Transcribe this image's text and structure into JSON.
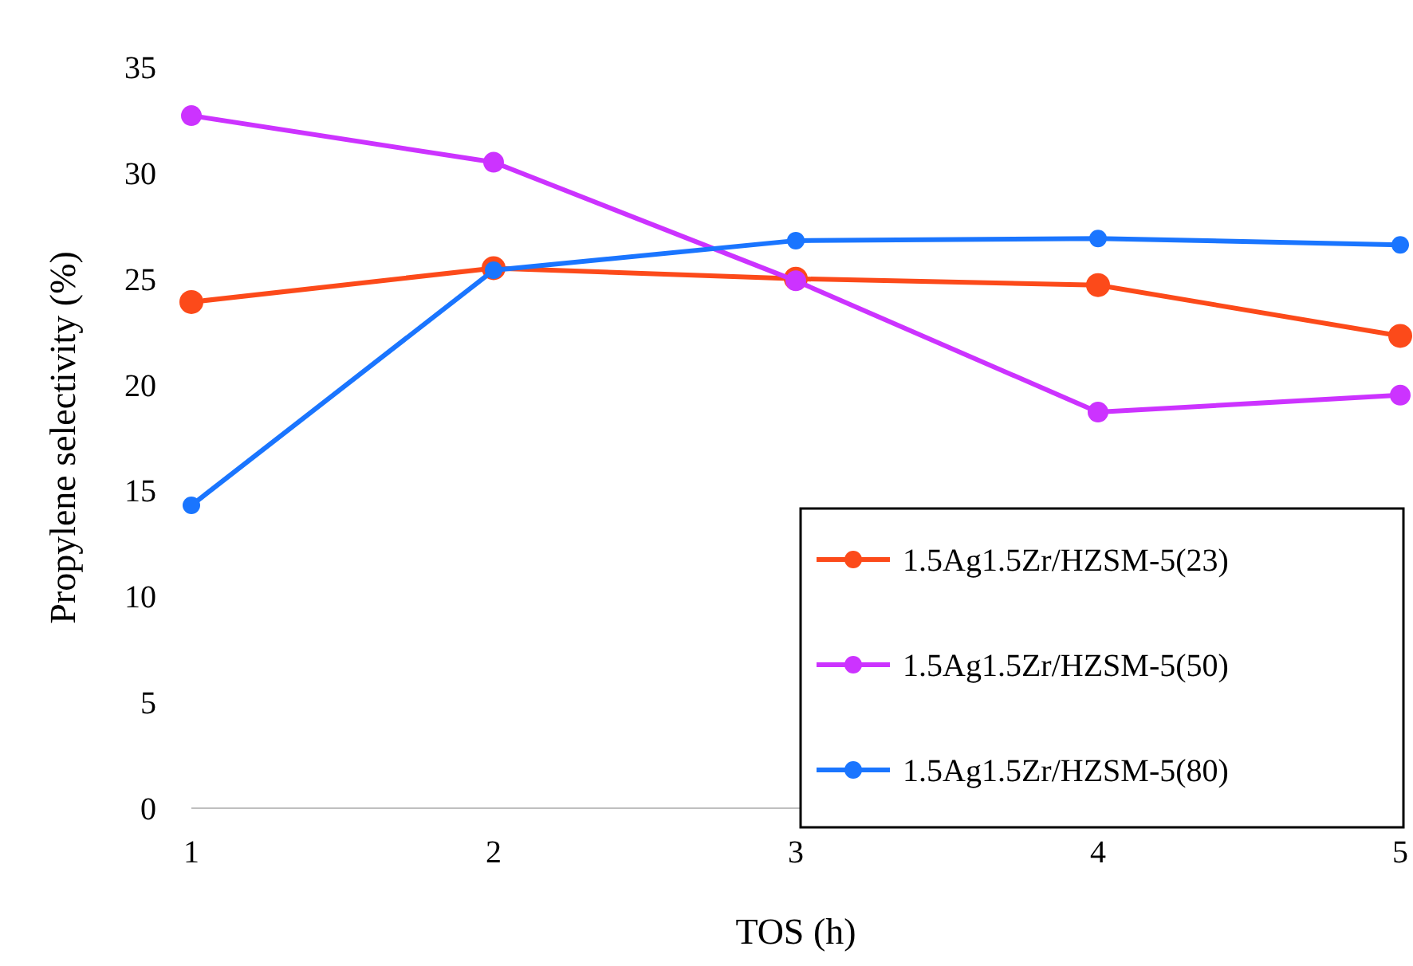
{
  "chart_data": {
    "type": "line",
    "xlabel": "TOS (h)",
    "ylabel": "Propylene selectivity (%)",
    "x": [
      1,
      2,
      3,
      4,
      5
    ],
    "xlim": [
      1,
      5
    ],
    "xticks": [
      1,
      2,
      3,
      4,
      5
    ],
    "ylim": [
      0,
      35
    ],
    "yticks": [
      0,
      5,
      10,
      15,
      20,
      25,
      30,
      35
    ],
    "grid": false,
    "legend": "bottom right",
    "marker": "circle",
    "line_style": "solid",
    "series": [
      {
        "name": "1.5Ag1.5Zr/HZSM-5(23)",
        "color": "#fc4a1a",
        "values": [
          23.9,
          25.5,
          25.0,
          24.7,
          22.3
        ]
      },
      {
        "name": "1.5Ag1.5Zr/HZSM-5(50)",
        "color": "#cc33ff",
        "values": [
          32.7,
          30.5,
          24.9,
          18.7,
          19.5
        ]
      },
      {
        "name": "1.5Ag1.5Zr/HZSM-5(80)",
        "color": "#1a75ff",
        "values": [
          14.3,
          25.4,
          26.8,
          26.9,
          26.6
        ]
      }
    ]
  }
}
